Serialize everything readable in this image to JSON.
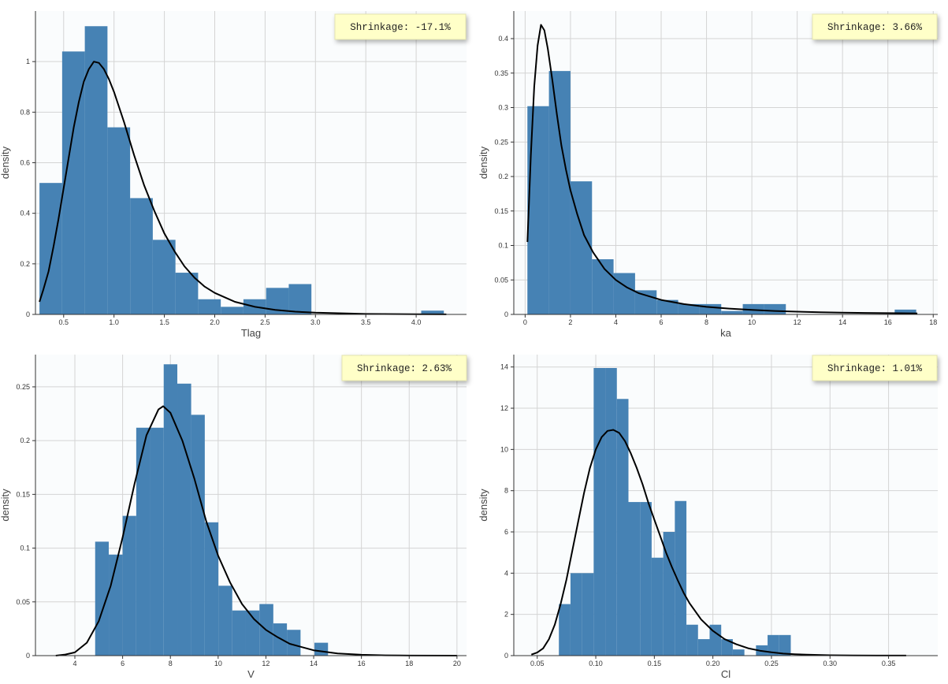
{
  "theme": {
    "bar_color": "#4682b4",
    "curve_color": "#000000",
    "plot_background": "#fafcfd",
    "grid_color": "#d4d4d4",
    "shrinkage_box_color": "#ffffc8"
  },
  "chart_data": [
    {
      "type": "bar",
      "xlabel": "Tlag",
      "ylabel": "density",
      "xlim": [
        0.22,
        4.5
      ],
      "ylim": [
        0,
        1.2
      ],
      "xticks": [
        0.5,
        1.0,
        1.5,
        2.0,
        2.5,
        3.0,
        3.5,
        4.0
      ],
      "xtick_labels": [
        "0.5",
        "1.0",
        "1.5",
        "2.0",
        "2.5",
        "3.0",
        "3.5",
        "4.0"
      ],
      "yticks": [
        0,
        0.2,
        0.4,
        0.6,
        0.8,
        1.0
      ],
      "ytick_labels": [
        "0",
        "0.2",
        "0.4",
        "0.6",
        "0.8",
        "1"
      ],
      "grid": true,
      "shrinkage": "Shrinkage: -17.1%",
      "bins": [
        {
          "x0": 0.26,
          "x1": 0.485,
          "y": 0.52
        },
        {
          "x0": 0.485,
          "x1": 0.71,
          "y": 1.04
        },
        {
          "x0": 0.71,
          "x1": 0.935,
          "y": 1.14
        },
        {
          "x0": 0.935,
          "x1": 1.16,
          "y": 0.74
        },
        {
          "x0": 1.16,
          "x1": 1.385,
          "y": 0.46
        },
        {
          "x0": 1.385,
          "x1": 1.61,
          "y": 0.295
        },
        {
          "x0": 1.61,
          "x1": 1.835,
          "y": 0.165
        },
        {
          "x0": 1.835,
          "x1": 2.06,
          "y": 0.06
        },
        {
          "x0": 2.06,
          "x1": 2.285,
          "y": 0.03
        },
        {
          "x0": 2.285,
          "x1": 2.51,
          "y": 0.06
        },
        {
          "x0": 2.51,
          "x1": 2.735,
          "y": 0.105
        },
        {
          "x0": 2.735,
          "x1": 2.96,
          "y": 0.12
        },
        {
          "x0": 4.05,
          "x1": 4.275,
          "y": 0.015
        }
      ],
      "curve": [
        [
          0.26,
          0.05
        ],
        [
          0.3,
          0.1
        ],
        [
          0.35,
          0.17
        ],
        [
          0.4,
          0.27
        ],
        [
          0.45,
          0.38
        ],
        [
          0.5,
          0.5
        ],
        [
          0.55,
          0.62
        ],
        [
          0.6,
          0.74
        ],
        [
          0.65,
          0.84
        ],
        [
          0.7,
          0.92
        ],
        [
          0.75,
          0.97
        ],
        [
          0.8,
          1.0
        ],
        [
          0.85,
          0.995
        ],
        [
          0.9,
          0.97
        ],
        [
          0.95,
          0.93
        ],
        [
          1.0,
          0.88
        ],
        [
          1.1,
          0.76
        ],
        [
          1.2,
          0.63
        ],
        [
          1.3,
          0.51
        ],
        [
          1.4,
          0.41
        ],
        [
          1.5,
          0.32
        ],
        [
          1.6,
          0.25
        ],
        [
          1.7,
          0.19
        ],
        [
          1.8,
          0.145
        ],
        [
          1.9,
          0.11
        ],
        [
          2.0,
          0.085
        ],
        [
          2.2,
          0.05
        ],
        [
          2.4,
          0.03
        ],
        [
          2.6,
          0.018
        ],
        [
          2.8,
          0.011
        ],
        [
          3.0,
          0.007
        ],
        [
          3.5,
          0.002
        ],
        [
          4.0,
          0.0007
        ],
        [
          4.3,
          0.0003
        ]
      ]
    },
    {
      "type": "bar",
      "xlabel": "ka",
      "ylabel": "density",
      "xlim": [
        -0.5,
        18.2
      ],
      "ylim": [
        0,
        0.44
      ],
      "xticks": [
        0,
        2,
        4,
        6,
        8,
        10,
        12,
        14,
        16,
        18
      ],
      "xtick_labels": [
        "0",
        "2",
        "4",
        "6",
        "8",
        "10",
        "12",
        "14",
        "16",
        "18"
      ],
      "yticks": [
        0,
        0.05,
        0.1,
        0.15,
        0.2,
        0.25,
        0.3,
        0.35,
        0.4
      ],
      "ytick_labels": [
        "0",
        "0.05",
        "0.1",
        "0.15",
        "0.2",
        "0.25",
        "0.3",
        "0.35",
        "0.4"
      ],
      "grid": true,
      "shrinkage": "Shrinkage: 3.66%",
      "bins": [
        {
          "x0": 0.1,
          "x1": 1.05,
          "y": 0.302
        },
        {
          "x0": 1.05,
          "x1": 2.0,
          "y": 0.353
        },
        {
          "x0": 2.0,
          "x1": 2.95,
          "y": 0.193
        },
        {
          "x0": 2.95,
          "x1": 3.9,
          "y": 0.08
        },
        {
          "x0": 3.9,
          "x1": 4.85,
          "y": 0.06
        },
        {
          "x0": 4.85,
          "x1": 5.8,
          "y": 0.035
        },
        {
          "x0": 5.8,
          "x1": 6.75,
          "y": 0.021
        },
        {
          "x0": 6.75,
          "x1": 7.7,
          "y": 0.015
        },
        {
          "x0": 7.7,
          "x1": 8.65,
          "y": 0.015
        },
        {
          "x0": 8.65,
          "x1": 9.6,
          "y": 0.005
        },
        {
          "x0": 9.6,
          "x1": 10.55,
          "y": 0.015
        },
        {
          "x0": 10.55,
          "x1": 11.5,
          "y": 0.015
        },
        {
          "x0": 16.3,
          "x1": 17.25,
          "y": 0.007
        }
      ],
      "curve": [
        [
          0.1,
          0.105
        ],
        [
          0.25,
          0.23
        ],
        [
          0.4,
          0.33
        ],
        [
          0.55,
          0.39
        ],
        [
          0.7,
          0.42
        ],
        [
          0.85,
          0.412
        ],
        [
          1.0,
          0.385
        ],
        [
          1.2,
          0.34
        ],
        [
          1.4,
          0.29
        ],
        [
          1.6,
          0.245
        ],
        [
          1.8,
          0.21
        ],
        [
          2.0,
          0.18
        ],
        [
          2.3,
          0.145
        ],
        [
          2.6,
          0.115
        ],
        [
          3.0,
          0.09
        ],
        [
          3.5,
          0.066
        ],
        [
          4.0,
          0.05
        ],
        [
          4.5,
          0.039
        ],
        [
          5.0,
          0.031
        ],
        [
          6.0,
          0.021
        ],
        [
          7.0,
          0.015
        ],
        [
          8.0,
          0.011
        ],
        [
          9.0,
          0.0085
        ],
        [
          10.0,
          0.0065
        ],
        [
          11.0,
          0.005
        ],
        [
          12.0,
          0.004
        ],
        [
          13.0,
          0.0032
        ],
        [
          14.0,
          0.0026
        ],
        [
          15.0,
          0.0022
        ],
        [
          16.0,
          0.0018
        ],
        [
          17.3,
          0.0015
        ]
      ]
    },
    {
      "type": "bar",
      "xlabel": "V",
      "ylabel": "density",
      "xlim": [
        2.35,
        20.4
      ],
      "ylim": [
        0,
        0.28
      ],
      "xticks": [
        4,
        6,
        8,
        10,
        12,
        14,
        16,
        18,
        20
      ],
      "xtick_labels": [
        "4",
        "6",
        "8",
        "10",
        "12",
        "14",
        "16",
        "18",
        "20"
      ],
      "yticks": [
        0,
        0.05,
        0.1,
        0.15,
        0.2,
        0.25
      ],
      "ytick_labels": [
        "0",
        "0.05",
        "0.1",
        "0.15",
        "0.2",
        "0.25"
      ],
      "grid": true,
      "shrinkage": "Shrinkage: 2.63%",
      "bins": [
        {
          "x0": 4.85,
          "x1": 5.42,
          "y": 0.106
        },
        {
          "x0": 5.42,
          "x1": 6.0,
          "y": 0.094
        },
        {
          "x0": 6.0,
          "x1": 6.57,
          "y": 0.13
        },
        {
          "x0": 6.57,
          "x1": 7.15,
          "y": 0.212
        },
        {
          "x0": 7.15,
          "x1": 7.72,
          "y": 0.212
        },
        {
          "x0": 7.72,
          "x1": 8.29,
          "y": 0.271
        },
        {
          "x0": 8.29,
          "x1": 8.87,
          "y": 0.253
        },
        {
          "x0": 8.87,
          "x1": 9.44,
          "y": 0.224
        },
        {
          "x0": 9.44,
          "x1": 10.01,
          "y": 0.124
        },
        {
          "x0": 10.01,
          "x1": 10.59,
          "y": 0.065
        },
        {
          "x0": 10.59,
          "x1": 11.16,
          "y": 0.042
        },
        {
          "x0": 11.16,
          "x1": 11.73,
          "y": 0.042
        },
        {
          "x0": 11.73,
          "x1": 12.31,
          "y": 0.048
        },
        {
          "x0": 12.31,
          "x1": 12.88,
          "y": 0.03
        },
        {
          "x0": 12.88,
          "x1": 13.45,
          "y": 0.024
        },
        {
          "x0": 14.03,
          "x1": 14.6,
          "y": 0.012
        }
      ],
      "curve": [
        [
          3.2,
          0.0
        ],
        [
          3.6,
          0.001
        ],
        [
          4.0,
          0.003
        ],
        [
          4.5,
          0.012
        ],
        [
          5.0,
          0.032
        ],
        [
          5.5,
          0.065
        ],
        [
          6.0,
          0.11
        ],
        [
          6.5,
          0.16
        ],
        [
          7.0,
          0.205
        ],
        [
          7.5,
          0.229
        ],
        [
          7.7,
          0.232
        ],
        [
          8.0,
          0.226
        ],
        [
          8.5,
          0.2
        ],
        [
          9.0,
          0.165
        ],
        [
          9.5,
          0.125
        ],
        [
          10.0,
          0.093
        ],
        [
          10.5,
          0.068
        ],
        [
          11.0,
          0.048
        ],
        [
          11.5,
          0.034
        ],
        [
          12.0,
          0.024
        ],
        [
          12.5,
          0.017
        ],
        [
          13.0,
          0.011
        ],
        [
          14.0,
          0.005
        ],
        [
          15.0,
          0.002
        ],
        [
          16.0,
          0.0008
        ],
        [
          17.0,
          0.0003
        ],
        [
          18.0,
          0.0001
        ],
        [
          20.0,
          0.0
        ]
      ]
    },
    {
      "type": "bar",
      "xlabel": "Cl",
      "ylabel": "density",
      "xlim": [
        0.03,
        0.392
      ],
      "ylim": [
        0,
        14.6
      ],
      "xticks": [
        0.05,
        0.1,
        0.15,
        0.2,
        0.25,
        0.3,
        0.35
      ],
      "xtick_labels": [
        "0.05",
        "0.10",
        "0.15",
        "0.20",
        "0.25",
        "0.30",
        "0.35"
      ],
      "yticks": [
        0,
        2,
        4,
        6,
        8,
        10,
        12,
        14
      ],
      "ytick_labels": [
        "0",
        "2",
        "4",
        "6",
        "8",
        "10",
        "12",
        "14"
      ],
      "grid": true,
      "shrinkage": "Shrinkage: 1.01%",
      "bins": [
        {
          "x0": 0.0685,
          "x1": 0.0784,
          "y": 2.5
        },
        {
          "x0": 0.0784,
          "x1": 0.0883,
          "y": 4.0
        },
        {
          "x0": 0.0883,
          "x1": 0.0982,
          "y": 4.0
        },
        {
          "x0": 0.0982,
          "x1": 0.1081,
          "y": 13.95
        },
        {
          "x0": 0.1081,
          "x1": 0.118,
          "y": 13.95
        },
        {
          "x0": 0.118,
          "x1": 0.1279,
          "y": 12.45
        },
        {
          "x0": 0.1279,
          "x1": 0.1378,
          "y": 7.45
        },
        {
          "x0": 0.1378,
          "x1": 0.1477,
          "y": 7.45
        },
        {
          "x0": 0.1477,
          "x1": 0.1576,
          "y": 4.75
        },
        {
          "x0": 0.1576,
          "x1": 0.1675,
          "y": 6.0
        },
        {
          "x0": 0.1675,
          "x1": 0.1774,
          "y": 7.5
        },
        {
          "x0": 0.1774,
          "x1": 0.1873,
          "y": 1.5
        },
        {
          "x0": 0.1873,
          "x1": 0.1972,
          "y": 0.8
        },
        {
          "x0": 0.1972,
          "x1": 0.2071,
          "y": 1.5
        },
        {
          "x0": 0.2071,
          "x1": 0.217,
          "y": 0.8
        },
        {
          "x0": 0.217,
          "x1": 0.2269,
          "y": 0.3
        },
        {
          "x0": 0.2368,
          "x1": 0.2467,
          "y": 0.5
        },
        {
          "x0": 0.2467,
          "x1": 0.2566,
          "y": 1.0
        },
        {
          "x0": 0.2566,
          "x1": 0.2665,
          "y": 1.0
        }
      ],
      "curve": [
        [
          0.045,
          0.05
        ],
        [
          0.05,
          0.15
        ],
        [
          0.055,
          0.35
        ],
        [
          0.06,
          0.8
        ],
        [
          0.065,
          1.5
        ],
        [
          0.07,
          2.5
        ],
        [
          0.075,
          3.7
        ],
        [
          0.08,
          5.1
        ],
        [
          0.085,
          6.5
        ],
        [
          0.09,
          7.9
        ],
        [
          0.095,
          9.1
        ],
        [
          0.1,
          10.0
        ],
        [
          0.105,
          10.6
        ],
        [
          0.11,
          10.9
        ],
        [
          0.115,
          10.95
        ],
        [
          0.12,
          10.8
        ],
        [
          0.125,
          10.4
        ],
        [
          0.13,
          9.8
        ],
        [
          0.135,
          9.1
        ],
        [
          0.14,
          8.3
        ],
        [
          0.145,
          7.4
        ],
        [
          0.15,
          6.6
        ],
        [
          0.155,
          5.8
        ],
        [
          0.16,
          5.0
        ],
        [
          0.165,
          4.3
        ],
        [
          0.17,
          3.65
        ],
        [
          0.175,
          3.05
        ],
        [
          0.18,
          2.55
        ],
        [
          0.19,
          1.75
        ],
        [
          0.2,
          1.2
        ],
        [
          0.21,
          0.8
        ],
        [
          0.22,
          0.55
        ],
        [
          0.23,
          0.36
        ],
        [
          0.24,
          0.24
        ],
        [
          0.25,
          0.16
        ],
        [
          0.26,
          0.1
        ],
        [
          0.27,
          0.07
        ],
        [
          0.28,
          0.045
        ],
        [
          0.3,
          0.02
        ],
        [
          0.32,
          0.009
        ],
        [
          0.34,
          0.004
        ],
        [
          0.365,
          0.002
        ]
      ]
    }
  ]
}
